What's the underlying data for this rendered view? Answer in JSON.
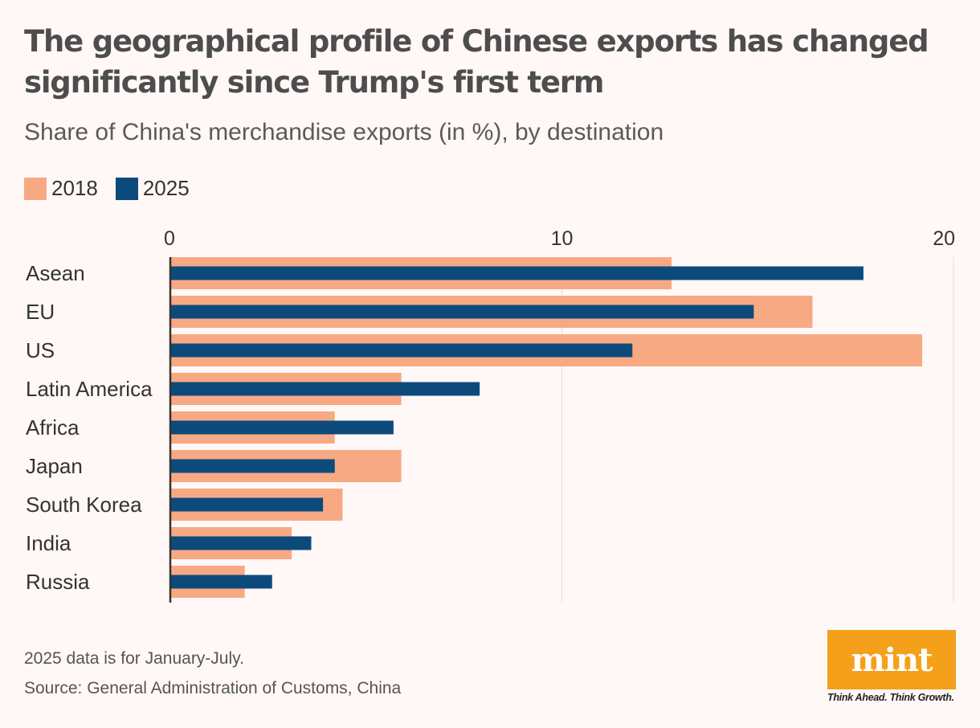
{
  "title": "The geographical profile of Chinese exports has changed significantly since Trump's first term",
  "subtitle": "Share of China's merchandise exports (in %), by destination",
  "colors": {
    "series_2018": "#f7a983",
    "series_2025": "#0d4a7c",
    "background": "#fff8f6",
    "grid": "#dddddd",
    "axis": "#333333",
    "logo": "#f5a01a"
  },
  "chart_data": {
    "type": "bar",
    "orientation": "horizontal",
    "categories": [
      "Asean",
      "EU",
      "US",
      "Latin America",
      "Africa",
      "Japan",
      "South Korea",
      "India",
      "Russia"
    ],
    "series": [
      {
        "name": "2018",
        "values": [
          12.8,
          16.4,
          19.2,
          5.9,
          4.2,
          5.9,
          4.4,
          3.1,
          1.9
        ]
      },
      {
        "name": "2025",
        "values": [
          17.7,
          14.9,
          11.8,
          7.9,
          5.7,
          4.2,
          3.9,
          3.6,
          2.6
        ]
      }
    ],
    "xlim": [
      0,
      20
    ],
    "xticks": [
      "0",
      "10",
      "20"
    ],
    "xaxis_position": "top",
    "grid": true,
    "legend_position": "top-left"
  },
  "notes": {
    "data_note": "2025 data is for January-July.",
    "source": "Source: General Administration of Customs, China"
  },
  "logo": {
    "word": "mint",
    "tagline": "Think Ahead. Think Growth."
  }
}
